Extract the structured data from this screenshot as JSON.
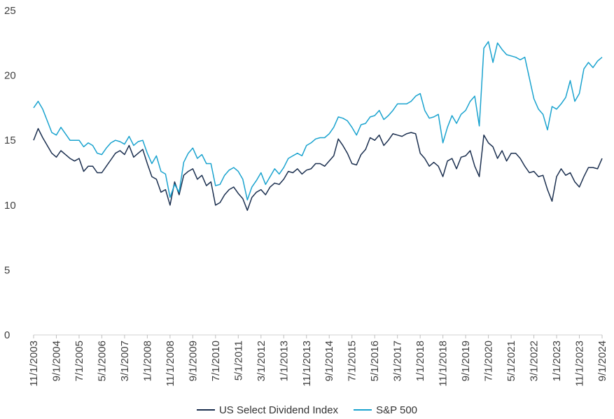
{
  "chart_data": {
    "type": "line",
    "title": "",
    "xlabel": "",
    "ylabel": "",
    "ylim": [
      0,
      25
    ],
    "yticks": [
      "0",
      "5",
      "10",
      "15",
      "20",
      "25"
    ],
    "xtick_labels": [
      "11/1/2003",
      "9/1/2004",
      "7/1/2005",
      "5/1/2006",
      "3/1/2007",
      "1/1/2008",
      "11/1/2008",
      "9/1/2009",
      "7/1/2010",
      "5/1/2011",
      "3/1/2012",
      "1/1/2013",
      "11/1/2013",
      "9/1/2014",
      "7/1/2015",
      "5/1/2016",
      "3/1/2017",
      "1/1/2018",
      "11/1/2018",
      "9/1/2019",
      "7/1/2020",
      "5/1/2021",
      "3/1/2022",
      "1/1/2023",
      "11/1/2023",
      "9/1/2024"
    ],
    "grid": false,
    "legend_position": "bottom",
    "series": [
      {
        "name": "US Select Dividend Index",
        "color": "#1b2f4f",
        "points": [
          [
            "11/1/2003",
            15.0
          ],
          [
            "1/1/2004",
            15.9
          ],
          [
            "3/1/2004",
            15.2
          ],
          [
            "5/1/2004",
            14.6
          ],
          [
            "7/1/2004",
            14.0
          ],
          [
            "9/1/2004",
            13.7
          ],
          [
            "11/1/2004",
            14.2
          ],
          [
            "1/1/2005",
            13.9
          ],
          [
            "3/1/2005",
            13.6
          ],
          [
            "5/1/2005",
            13.4
          ],
          [
            "7/1/2005",
            13.6
          ],
          [
            "9/1/2005",
            12.6
          ],
          [
            "11/1/2005",
            13.0
          ],
          [
            "1/1/2006",
            13.0
          ],
          [
            "3/1/2006",
            12.5
          ],
          [
            "5/1/2006",
            12.5
          ],
          [
            "7/1/2006",
            13.0
          ],
          [
            "9/1/2006",
            13.5
          ],
          [
            "11/1/2006",
            14.0
          ],
          [
            "1/1/2007",
            14.2
          ],
          [
            "3/1/2007",
            13.9
          ],
          [
            "5/1/2007",
            14.6
          ],
          [
            "7/1/2007",
            13.7
          ],
          [
            "9/1/2007",
            14.0
          ],
          [
            "11/1/2007",
            14.3
          ],
          [
            "1/1/2008",
            13.2
          ],
          [
            "3/1/2008",
            12.2
          ],
          [
            "5/1/2008",
            12.0
          ],
          [
            "7/1/2008",
            11.0
          ],
          [
            "9/1/2008",
            11.2
          ],
          [
            "11/1/2008",
            10.0
          ],
          [
            "1/1/2009",
            11.8
          ],
          [
            "3/1/2009",
            10.8
          ],
          [
            "5/1/2009",
            12.3
          ],
          [
            "7/1/2009",
            12.6
          ],
          [
            "9/1/2009",
            12.8
          ],
          [
            "11/1/2009",
            12.0
          ],
          [
            "1/1/2010",
            12.3
          ],
          [
            "3/1/2010",
            11.5
          ],
          [
            "5/1/2010",
            11.8
          ],
          [
            "7/1/2010",
            10.0
          ],
          [
            "9/1/2010",
            10.2
          ],
          [
            "11/1/2010",
            10.8
          ],
          [
            "1/1/2011",
            11.2
          ],
          [
            "3/1/2011",
            11.4
          ],
          [
            "5/1/2011",
            10.9
          ],
          [
            "7/1/2011",
            10.5
          ],
          [
            "9/1/2011",
            9.6
          ],
          [
            "11/1/2011",
            10.6
          ],
          [
            "1/1/2012",
            11.0
          ],
          [
            "3/1/2012",
            11.2
          ],
          [
            "5/1/2012",
            10.8
          ],
          [
            "7/1/2012",
            11.4
          ],
          [
            "9/1/2012",
            11.7
          ],
          [
            "11/1/2012",
            11.6
          ],
          [
            "1/1/2013",
            12.0
          ],
          [
            "3/1/2013",
            12.6
          ],
          [
            "5/1/2013",
            12.5
          ],
          [
            "7/1/2013",
            12.8
          ],
          [
            "9/1/2013",
            12.4
          ],
          [
            "11/1/2013",
            12.7
          ],
          [
            "1/1/2014",
            12.8
          ],
          [
            "3/1/2014",
            13.2
          ],
          [
            "5/1/2014",
            13.2
          ],
          [
            "7/1/2014",
            13.0
          ],
          [
            "9/1/2014",
            13.4
          ],
          [
            "11/1/2014",
            13.8
          ],
          [
            "1/1/2015",
            15.1
          ],
          [
            "3/1/2015",
            14.6
          ],
          [
            "5/1/2015",
            14.0
          ],
          [
            "7/1/2015",
            13.2
          ],
          [
            "9/1/2015",
            13.1
          ],
          [
            "11/1/2015",
            13.9
          ],
          [
            "1/1/2016",
            14.3
          ],
          [
            "3/1/2016",
            15.2
          ],
          [
            "5/1/2016",
            15.0
          ],
          [
            "7/1/2016",
            15.4
          ],
          [
            "9/1/2016",
            14.6
          ],
          [
            "11/1/2016",
            15.0
          ],
          [
            "1/1/2017",
            15.5
          ],
          [
            "3/1/2017",
            15.4
          ],
          [
            "5/1/2017",
            15.3
          ],
          [
            "7/1/2017",
            15.5
          ],
          [
            "9/1/2017",
            15.6
          ],
          [
            "11/1/2017",
            15.5
          ],
          [
            "1/1/2018",
            14.0
          ],
          [
            "3/1/2018",
            13.6
          ],
          [
            "5/1/2018",
            13.0
          ],
          [
            "7/1/2018",
            13.3
          ],
          [
            "9/1/2018",
            13.0
          ],
          [
            "11/1/2018",
            12.2
          ],
          [
            "1/1/2019",
            13.4
          ],
          [
            "3/1/2019",
            13.6
          ],
          [
            "5/1/2019",
            12.8
          ],
          [
            "7/1/2019",
            13.7
          ],
          [
            "9/1/2019",
            13.8
          ],
          [
            "11/1/2019",
            14.2
          ],
          [
            "1/1/2020",
            13.0
          ],
          [
            "3/1/2020",
            12.2
          ],
          [
            "5/1/2020",
            15.4
          ],
          [
            "7/1/2020",
            14.8
          ],
          [
            "9/1/2020",
            14.5
          ],
          [
            "11/1/2020",
            13.6
          ],
          [
            "1/1/2021",
            14.2
          ],
          [
            "3/1/2021",
            13.4
          ],
          [
            "5/1/2021",
            14.0
          ],
          [
            "7/1/2021",
            14.0
          ],
          [
            "9/1/2021",
            13.6
          ],
          [
            "11/1/2021",
            13.0
          ],
          [
            "1/1/2022",
            12.5
          ],
          [
            "3/1/2022",
            12.6
          ],
          [
            "5/1/2022",
            12.2
          ],
          [
            "7/1/2022",
            12.3
          ],
          [
            "9/1/2022",
            11.2
          ],
          [
            "11/1/2022",
            10.3
          ],
          [
            "1/1/2023",
            12.2
          ],
          [
            "3/1/2023",
            12.8
          ],
          [
            "5/1/2023",
            12.3
          ],
          [
            "7/1/2023",
            12.5
          ],
          [
            "9/1/2023",
            11.8
          ],
          [
            "11/1/2023",
            11.4
          ],
          [
            "1/1/2024",
            12.2
          ],
          [
            "3/1/2024",
            12.9
          ],
          [
            "5/1/2024",
            12.9
          ],
          [
            "7/1/2024",
            12.8
          ],
          [
            "9/1/2024",
            13.6
          ]
        ]
      },
      {
        "name": "S&P 500",
        "color": "#1aa3cf",
        "points": [
          [
            "11/1/2003",
            17.5
          ],
          [
            "1/1/2004",
            18.0
          ],
          [
            "3/1/2004",
            17.4
          ],
          [
            "5/1/2004",
            16.5
          ],
          [
            "7/1/2004",
            15.6
          ],
          [
            "9/1/2004",
            15.4
          ],
          [
            "11/1/2004",
            16.0
          ],
          [
            "1/1/2005",
            15.5
          ],
          [
            "3/1/2005",
            15.0
          ],
          [
            "5/1/2005",
            15.0
          ],
          [
            "7/1/2005",
            15.0
          ],
          [
            "9/1/2005",
            14.5
          ],
          [
            "11/1/2005",
            14.8
          ],
          [
            "1/1/2006",
            14.6
          ],
          [
            "3/1/2006",
            14.0
          ],
          [
            "5/1/2006",
            13.9
          ],
          [
            "7/1/2006",
            14.4
          ],
          [
            "9/1/2006",
            14.8
          ],
          [
            "11/1/2006",
            15.0
          ],
          [
            "1/1/2007",
            14.9
          ],
          [
            "3/1/2007",
            14.7
          ],
          [
            "5/1/2007",
            15.3
          ],
          [
            "7/1/2007",
            14.6
          ],
          [
            "9/1/2007",
            14.9
          ],
          [
            "11/1/2007",
            15.0
          ],
          [
            "1/1/2008",
            14.0
          ],
          [
            "3/1/2008",
            13.2
          ],
          [
            "5/1/2008",
            13.8
          ],
          [
            "7/1/2008",
            12.6
          ],
          [
            "9/1/2008",
            12.4
          ],
          [
            "11/1/2008",
            10.6
          ],
          [
            "1/1/2009",
            11.6
          ],
          [
            "3/1/2009",
            11.0
          ],
          [
            "5/1/2009",
            13.3
          ],
          [
            "7/1/2009",
            14.0
          ],
          [
            "9/1/2009",
            14.4
          ],
          [
            "11/1/2009",
            13.6
          ],
          [
            "1/1/2010",
            13.9
          ],
          [
            "3/1/2010",
            13.2
          ],
          [
            "5/1/2010",
            13.2
          ],
          [
            "7/1/2010",
            11.5
          ],
          [
            "9/1/2010",
            11.6
          ],
          [
            "11/1/2010",
            12.3
          ],
          [
            "1/1/2011",
            12.7
          ],
          [
            "3/1/2011",
            12.9
          ],
          [
            "5/1/2011",
            12.6
          ],
          [
            "7/1/2011",
            12.0
          ],
          [
            "9/1/2011",
            10.4
          ],
          [
            "11/1/2011",
            11.4
          ],
          [
            "1/1/2012",
            11.9
          ],
          [
            "3/1/2012",
            12.5
          ],
          [
            "5/1/2012",
            11.6
          ],
          [
            "7/1/2012",
            12.2
          ],
          [
            "9/1/2012",
            12.8
          ],
          [
            "11/1/2012",
            12.4
          ],
          [
            "1/1/2013",
            12.9
          ],
          [
            "3/1/2013",
            13.6
          ],
          [
            "5/1/2013",
            13.8
          ],
          [
            "7/1/2013",
            14.0
          ],
          [
            "9/1/2013",
            13.8
          ],
          [
            "11/1/2013",
            14.6
          ],
          [
            "1/1/2014",
            14.8
          ],
          [
            "3/1/2014",
            15.1
          ],
          [
            "5/1/2014",
            15.2
          ],
          [
            "7/1/2014",
            15.2
          ],
          [
            "9/1/2014",
            15.5
          ],
          [
            "11/1/2014",
            16.0
          ],
          [
            "1/1/2015",
            16.8
          ],
          [
            "3/1/2015",
            16.7
          ],
          [
            "5/1/2015",
            16.5
          ],
          [
            "7/1/2015",
            16.0
          ],
          [
            "9/1/2015",
            15.4
          ],
          [
            "11/1/2015",
            16.2
          ],
          [
            "1/1/2016",
            16.3
          ],
          [
            "3/1/2016",
            16.8
          ],
          [
            "5/1/2016",
            16.9
          ],
          [
            "7/1/2016",
            17.3
          ],
          [
            "9/1/2016",
            16.6
          ],
          [
            "11/1/2016",
            16.9
          ],
          [
            "1/1/2017",
            17.3
          ],
          [
            "3/1/2017",
            17.8
          ],
          [
            "5/1/2017",
            17.8
          ],
          [
            "7/1/2017",
            17.8
          ],
          [
            "9/1/2017",
            18.0
          ],
          [
            "11/1/2017",
            18.4
          ],
          [
            "1/1/2018",
            18.6
          ],
          [
            "3/1/2018",
            17.3
          ],
          [
            "5/1/2018",
            16.7
          ],
          [
            "7/1/2018",
            16.8
          ],
          [
            "9/1/2018",
            17.0
          ],
          [
            "11/1/2018",
            14.8
          ],
          [
            "1/1/2019",
            16.0
          ],
          [
            "3/1/2019",
            16.9
          ],
          [
            "5/1/2019",
            16.3
          ],
          [
            "7/1/2019",
            17.0
          ],
          [
            "9/1/2019",
            17.3
          ],
          [
            "11/1/2019",
            18.0
          ],
          [
            "1/1/2020",
            18.4
          ],
          [
            "3/1/2020",
            16.1
          ],
          [
            "5/1/2020",
            22.1
          ],
          [
            "7/1/2020",
            22.6
          ],
          [
            "9/1/2020",
            21.0
          ],
          [
            "11/1/2020",
            22.5
          ],
          [
            "1/1/2021",
            22.0
          ],
          [
            "3/1/2021",
            21.6
          ],
          [
            "5/1/2021",
            21.5
          ],
          [
            "7/1/2021",
            21.4
          ],
          [
            "9/1/2021",
            21.2
          ],
          [
            "11/1/2021",
            21.4
          ],
          [
            "1/1/2022",
            19.8
          ],
          [
            "3/1/2022",
            18.2
          ],
          [
            "5/1/2022",
            17.4
          ],
          [
            "7/1/2022",
            17.0
          ],
          [
            "9/1/2022",
            15.8
          ],
          [
            "11/1/2022",
            17.6
          ],
          [
            "1/1/2023",
            17.4
          ],
          [
            "3/1/2023",
            17.8
          ],
          [
            "5/1/2023",
            18.3
          ],
          [
            "7/1/2023",
            19.6
          ],
          [
            "9/1/2023",
            18.0
          ],
          [
            "11/1/2023",
            18.6
          ],
          [
            "1/1/2024",
            20.5
          ],
          [
            "3/1/2024",
            21.0
          ],
          [
            "5/1/2024",
            20.6
          ],
          [
            "7/1/2024",
            21.1
          ],
          [
            "9/1/2024",
            21.4
          ]
        ]
      }
    ]
  }
}
